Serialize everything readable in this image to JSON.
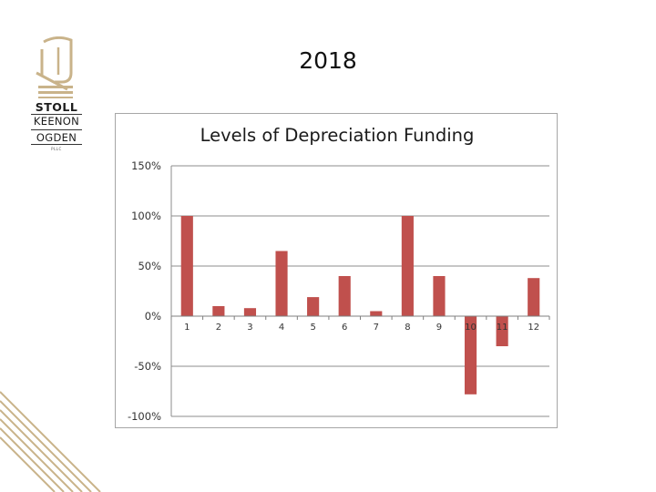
{
  "slide": {
    "title": "2018"
  },
  "logo": {
    "line1": "STOLL",
    "line2": "KEENON",
    "line3": "OGDEN",
    "line4": "PLLC"
  },
  "colors": {
    "bar": "#c0504d",
    "gold": "#c9b38a",
    "grid": "#8c8c8c",
    "frame": "#a6a6a6"
  },
  "chart_data": {
    "type": "bar",
    "title": "Levels of Depreciation Funding",
    "categories": [
      "1",
      "2",
      "3",
      "4",
      "5",
      "6",
      "7",
      "8",
      "9",
      "10",
      "11",
      "12"
    ],
    "values": [
      100,
      10,
      8,
      65,
      19,
      40,
      5,
      100,
      40,
      -78,
      -30,
      38
    ],
    "ylim": [
      -100,
      150
    ],
    "yticks": [
      150,
      100,
      50,
      0,
      -50,
      -100
    ],
    "ytick_labels": [
      "150%",
      "100%",
      "50%",
      "0%",
      "-50%",
      "-100%"
    ],
    "xlabel": "",
    "ylabel": "",
    "grid": true,
    "legend": "none"
  }
}
